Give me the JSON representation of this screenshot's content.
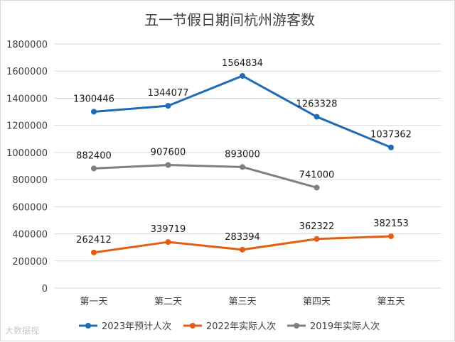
{
  "chart_data": {
    "type": "line",
    "title": "五一节假日期间杭州游客数",
    "categories": [
      "第一天",
      "第二天",
      "第三天",
      "第四天",
      "第五天"
    ],
    "ylim": [
      0,
      1800000
    ],
    "yticks": [
      0,
      200000,
      400000,
      600000,
      800000,
      1000000,
      1200000,
      1400000,
      1600000,
      1800000
    ],
    "grid": true,
    "legend_position": "bottom",
    "series": [
      {
        "name": "2023年预计人次",
        "color": "#1f6bb5",
        "values": [
          1300446,
          1344077,
          1564834,
          1263328,
          1037362
        ]
      },
      {
        "name": "2022年实际人次",
        "color": "#e35d12",
        "values": [
          262412,
          339719,
          283394,
          362322,
          382153
        ]
      },
      {
        "name": "2019年实际人次",
        "color": "#7f7f7f",
        "values": [
          882400,
          907600,
          893000,
          741000,
          null
        ]
      }
    ]
  },
  "watermark": "大数据视"
}
